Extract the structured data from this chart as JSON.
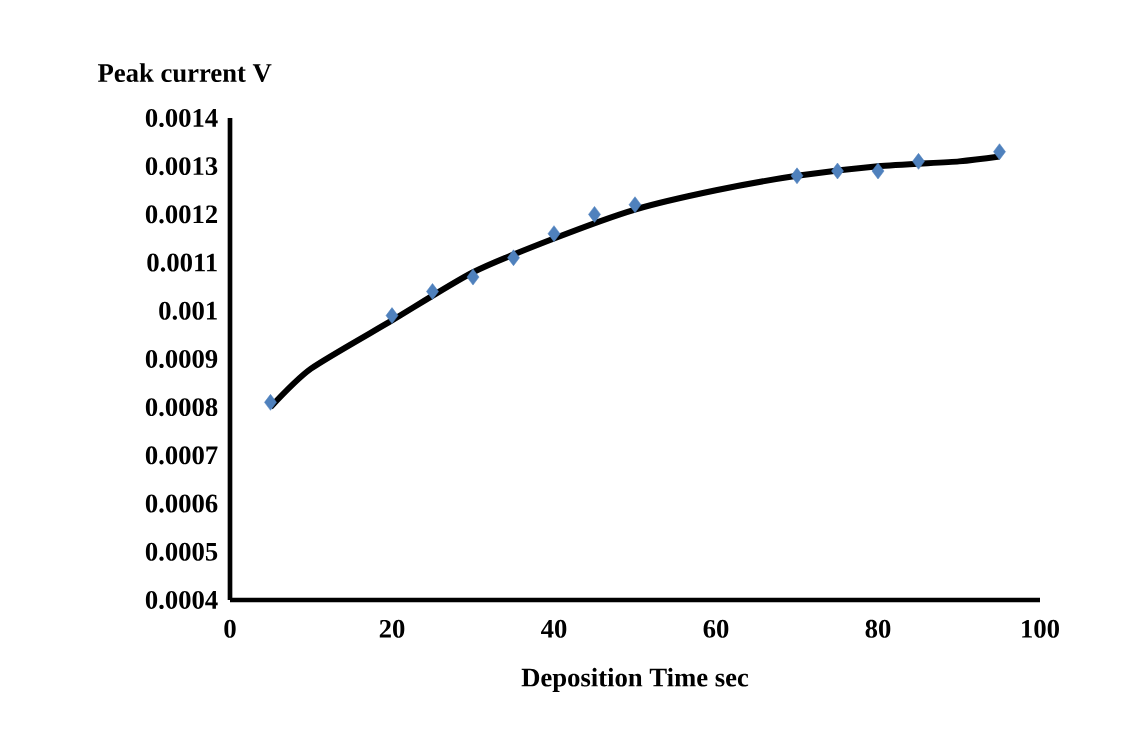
{
  "chart_data": {
    "type": "scatter",
    "xlabel": "Deposition Time sec",
    "ylabel": "Peak current  V",
    "xlim": [
      0,
      100
    ],
    "ylim": [
      0.0004,
      0.0014
    ],
    "xticks": [
      0,
      20,
      40,
      60,
      80,
      100
    ],
    "yticks": [
      0.0004,
      0.0005,
      0.0006,
      0.0007,
      0.0008,
      0.0009,
      0.001,
      0.0011,
      0.0012,
      0.0013,
      0.0014
    ],
    "grid": false,
    "series": [
      {
        "marker": "diamond",
        "color": "#4f81bd",
        "x": [
          5,
          20,
          25,
          30,
          35,
          40,
          45,
          50,
          70,
          75,
          80,
          85,
          95
        ],
        "values": [
          0.00081,
          0.00099,
          0.00104,
          0.00107,
          0.00111,
          0.00116,
          0.0012,
          0.00122,
          0.00128,
          0.00129,
          0.00129,
          0.00131,
          0.00133
        ]
      },
      {
        "type": "line",
        "marker": "none",
        "line_style": "solid",
        "color": "#000000",
        "x": [
          5,
          10,
          20,
          30,
          40,
          50,
          60,
          70,
          80,
          90,
          95
        ],
        "values": [
          0.0008,
          0.00088,
          0.00098,
          0.00108,
          0.00115,
          0.00121,
          0.00125,
          0.00128,
          0.0013,
          0.00131,
          0.00132
        ]
      }
    ]
  }
}
